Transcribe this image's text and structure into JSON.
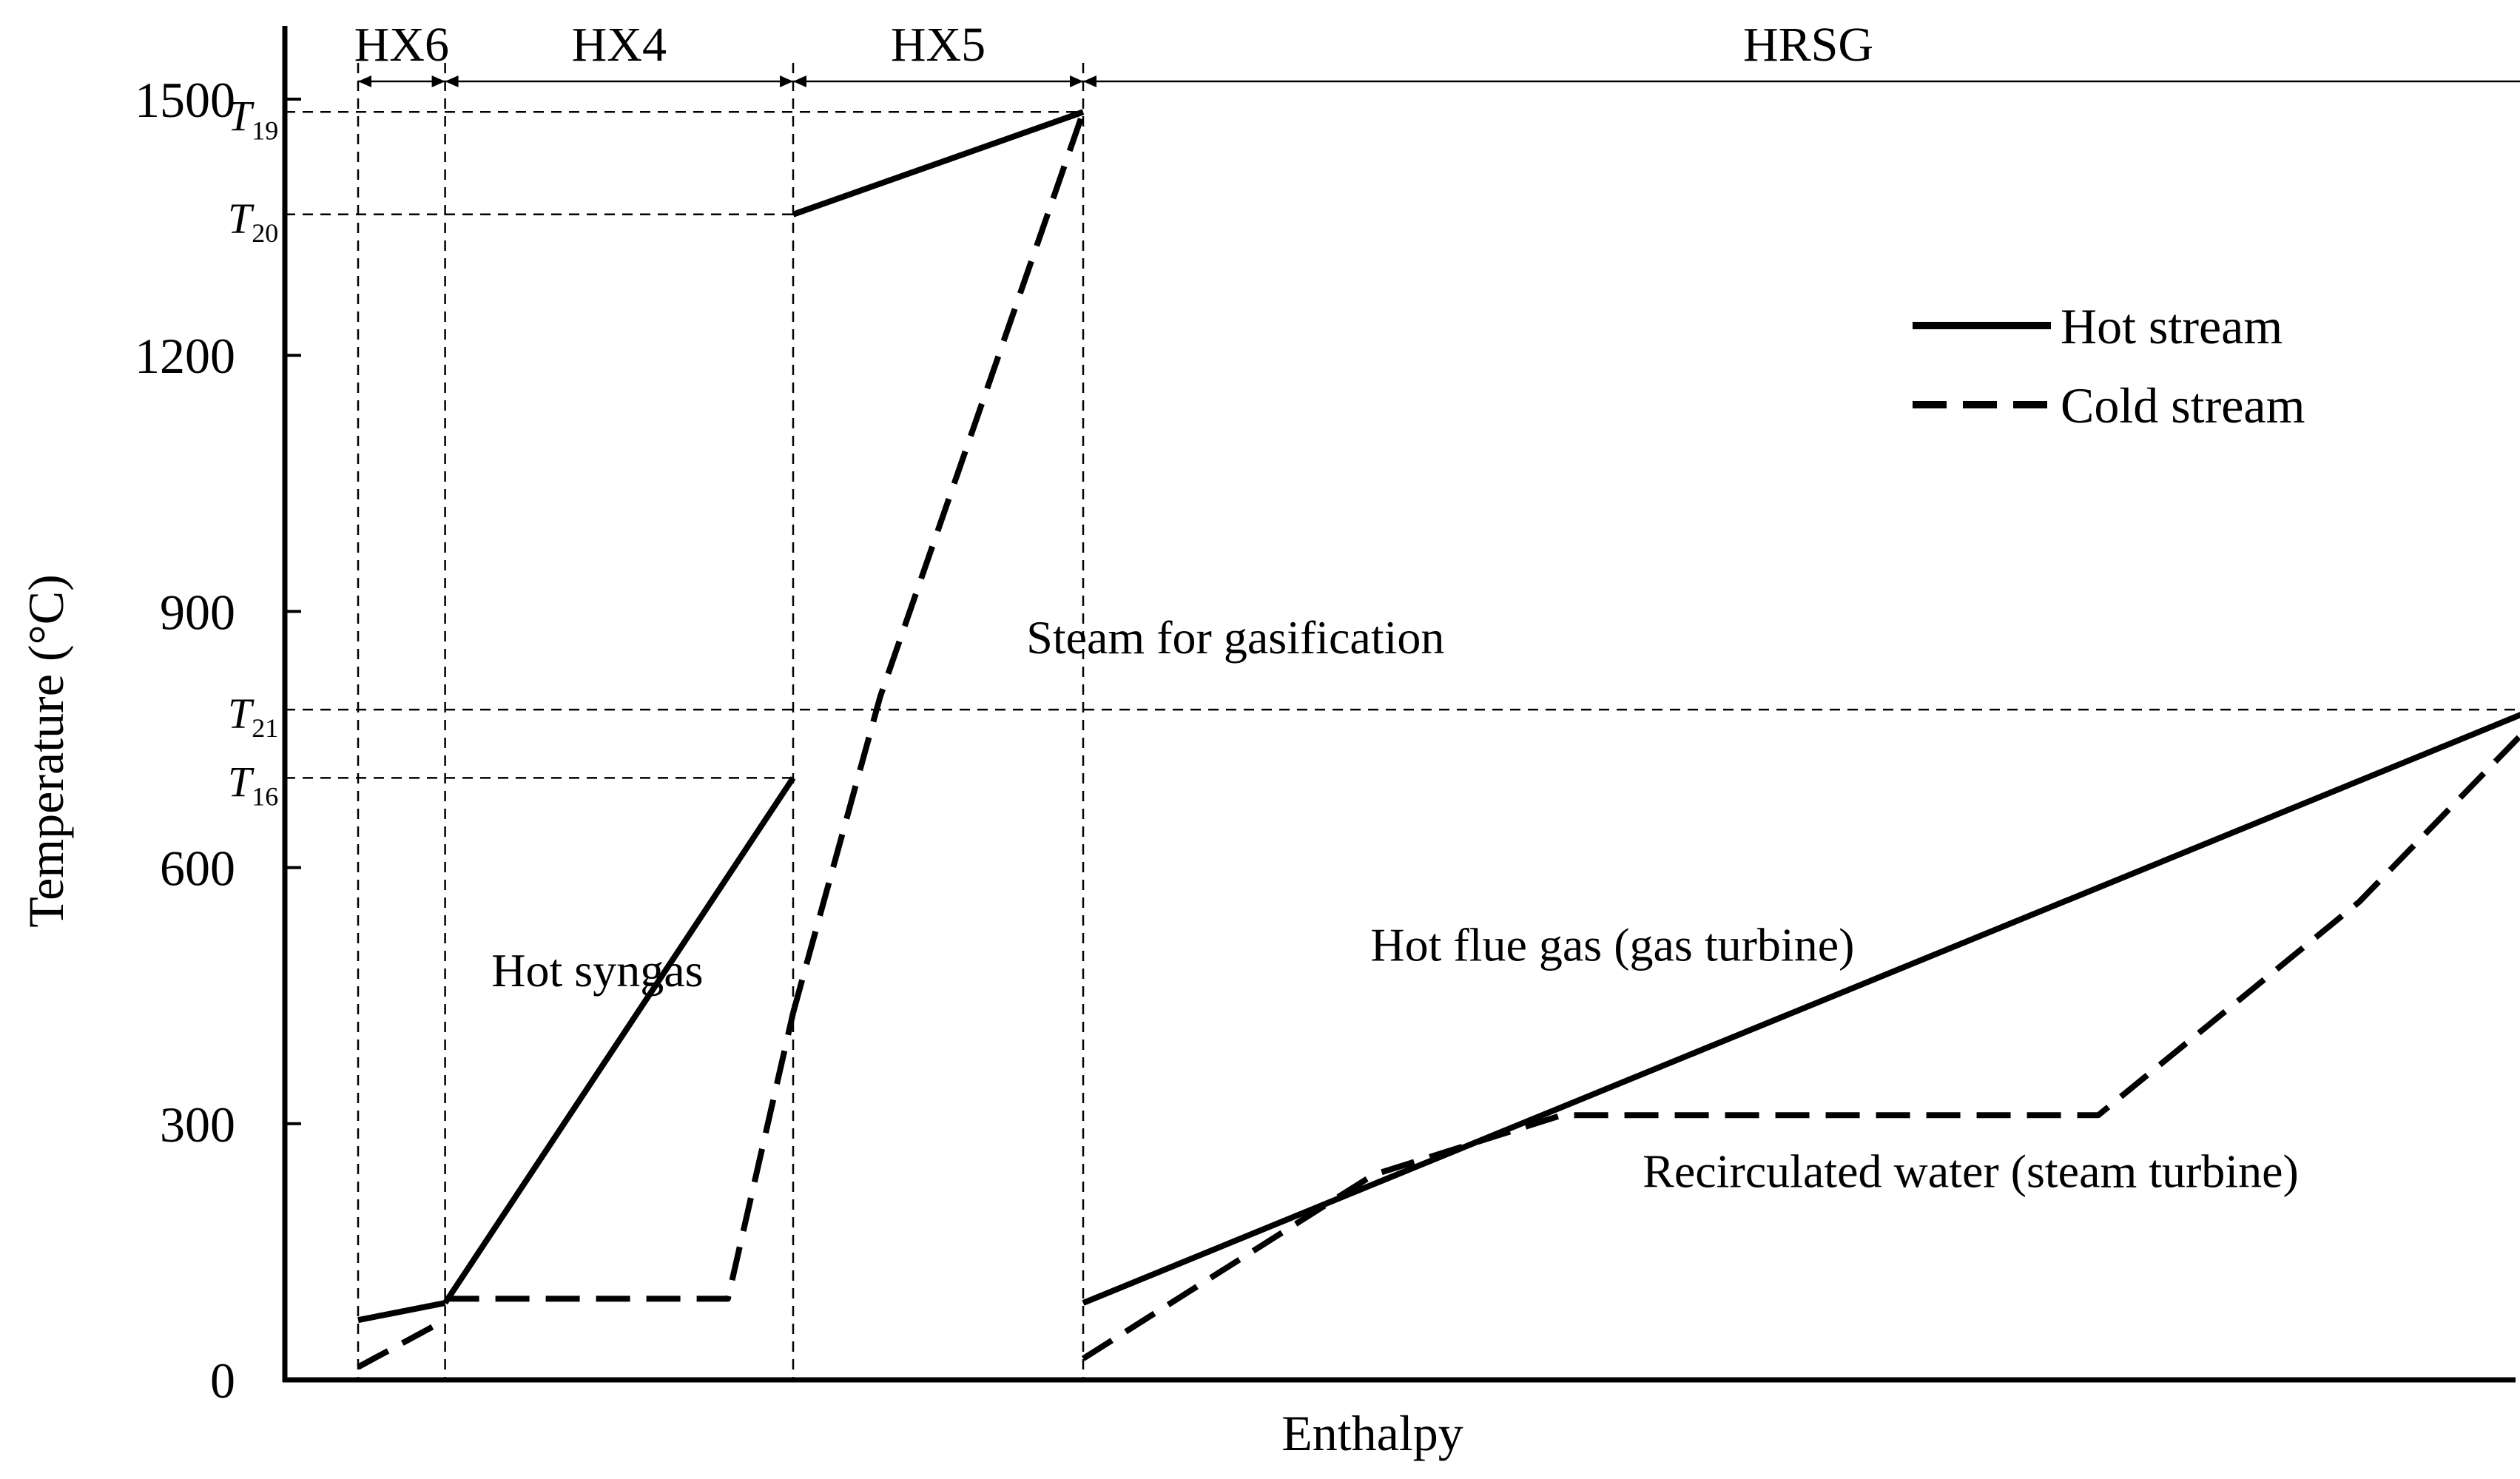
{
  "chart_data": {
    "type": "line",
    "title": "",
    "xlabel": "Enthalpy",
    "ylabel": "Temperature (°C)",
    "ylim": [
      0,
      1500
    ],
    "yticks": [
      0,
      300,
      600,
      900,
      1200,
      1500
    ],
    "x_tick_labels": false,
    "grid": false,
    "legend": {
      "position": "top-right",
      "entries": [
        {
          "label": "Hot stream",
          "style": "solid"
        },
        {
          "label": "Cold stream",
          "style": "dashed"
        }
      ]
    },
    "sections": [
      {
        "label": "HX6",
        "x_start": 0.0,
        "x_end": 0.06
      },
      {
        "label": "HX4",
        "x_start": 0.06,
        "x_end": 0.3
      },
      {
        "label": "HX5",
        "x_start": 0.3,
        "x_end": 0.5
      },
      {
        "label": "HRSG",
        "x_start": 0.5,
        "x_end": 1.5
      }
    ],
    "temperature_markers": [
      {
        "label": "T",
        "sub": "19",
        "value": 1485
      },
      {
        "label": "T",
        "sub": "20",
        "value": 1365
      },
      {
        "label": "T",
        "sub": "21",
        "value": 785
      },
      {
        "label": "T",
        "sub": "16",
        "value": 705
      }
    ],
    "series": [
      {
        "style": "solid",
        "x": [
          0.0,
          0.06
        ],
        "y": [
          70,
          90
        ]
      },
      {
        "style": "solid",
        "x": [
          0.06,
          0.3
        ],
        "y": [
          90,
          705
        ]
      },
      {
        "style": "solid",
        "x": [
          0.3,
          0.5
        ],
        "y": [
          1365,
          1485
        ]
      },
      {
        "style": "solid",
        "x": [
          0.5,
          1.5
        ],
        "y": [
          90,
          785
        ]
      },
      {
        "style": "dashed",
        "x": [
          0.0,
          0.06
        ],
        "y": [
          15,
          70
        ]
      },
      {
        "style": "dashed",
        "x": [
          0.06,
          0.255,
          0.3
        ],
        "y": [
          95,
          95,
          430
        ]
      },
      {
        "style": "dashed",
        "x": [
          0.3,
          0.36,
          0.5
        ],
        "y": [
          430,
          800,
          1485
        ]
      },
      {
        "style": "dashed",
        "x": [
          0.5,
          0.7,
          0.83,
          1.2,
          1.38,
          1.5
        ],
        "y": [
          25,
          240,
          310,
          310,
          560,
          770
        ]
      }
    ],
    "annotations": [
      {
        "text": "Hot syngas",
        "x": 0.165,
        "y": 480
      },
      {
        "text": "Steam for gasification",
        "x": 0.605,
        "y": 870
      },
      {
        "text": "Hot flue gas (gas turbine)",
        "x": 0.865,
        "y": 510
      },
      {
        "text": "Recirculated water (steam turbine)",
        "x": 1.112,
        "y": 245
      }
    ]
  }
}
